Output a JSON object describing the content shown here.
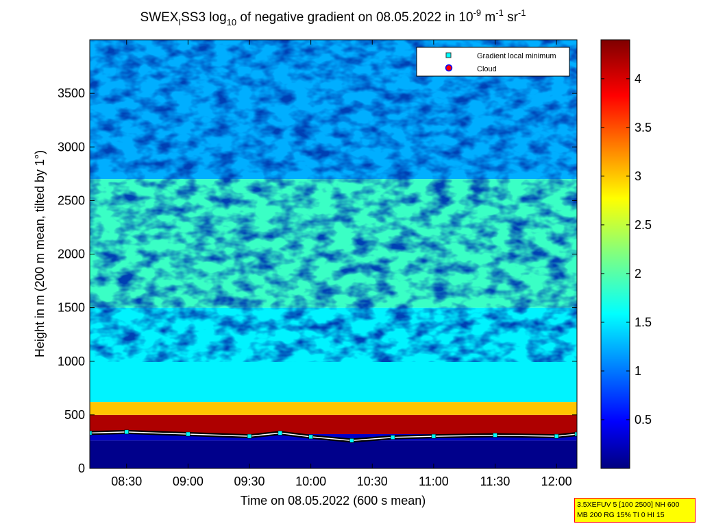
{
  "chart_data": {
    "type": "heatmap",
    "title": {
      "prefix": "SWEX",
      "sub1": "I",
      "mid": "SS3 log",
      "sub2": "10",
      "after": " of negative gradient on 08.05.2022 in 10",
      "sup1": "-9",
      "unit1": " m",
      "sup2": "-1",
      "unit2": " sr",
      "sup3": "-1"
    },
    "xlabel": "Time on 08.05.2022 (600 s mean)",
    "ylabel": "Height in m (200 m mean, tilted by 1°)",
    "xlim": [
      "08:12",
      "12:10"
    ],
    "ylim": [
      0,
      4000
    ],
    "x_ticks": [
      "08:30",
      "09:00",
      "09:30",
      "10:00",
      "10:30",
      "11:00",
      "11:30",
      "12:00"
    ],
    "y_ticks": [
      0,
      500,
      1000,
      1500,
      2000,
      2500,
      3000,
      3500
    ],
    "colorbar": {
      "ticks": [
        0.5,
        1,
        1.5,
        2,
        2.5,
        3,
        3.5,
        4
      ],
      "range": [
        0,
        4.4
      ],
      "colormap": "jet"
    },
    "legend": {
      "placement": "top-right",
      "entries": [
        {
          "name": "Gradient local minimum",
          "color": "#00ffff",
          "marker": "square"
        },
        {
          "name": "Cloud",
          "color": "#ff0000",
          "marker": "circle"
        }
      ]
    },
    "layers": [
      {
        "height_range": [
          0,
          260
        ],
        "value": 0.05
      },
      {
        "height_range": [
          320,
          500
        ],
        "value": 4.2
      },
      {
        "height_range": [
          500,
          620
        ],
        "value": 3.0
      },
      {
        "height_range": [
          620,
          1500
        ],
        "value": 1.6
      },
      {
        "height_range": [
          1500,
          2700
        ],
        "value": 1.9
      },
      {
        "height_range": [
          2700,
          4000
        ],
        "value": 1.3
      }
    ],
    "boundary_layer_top": [
      {
        "t": "08:12",
        "h": 330
      },
      {
        "t": "08:30",
        "h": 340
      },
      {
        "t": "09:00",
        "h": 320
      },
      {
        "t": "09:30",
        "h": 300
      },
      {
        "t": "09:45",
        "h": 330
      },
      {
        "t": "10:00",
        "h": 295
      },
      {
        "t": "10:20",
        "h": 260
      },
      {
        "t": "10:40",
        "h": 290
      },
      {
        "t": "11:00",
        "h": 300
      },
      {
        "t": "11:30",
        "h": 310
      },
      {
        "t": "12:00",
        "h": 300
      },
      {
        "t": "12:10",
        "h": 320
      }
    ]
  },
  "info_box": {
    "line1": "3.5XEFUV 5 [100 2500] NH 600",
    "line2": "MB 200 RG 15% TI 0 HI 15"
  }
}
